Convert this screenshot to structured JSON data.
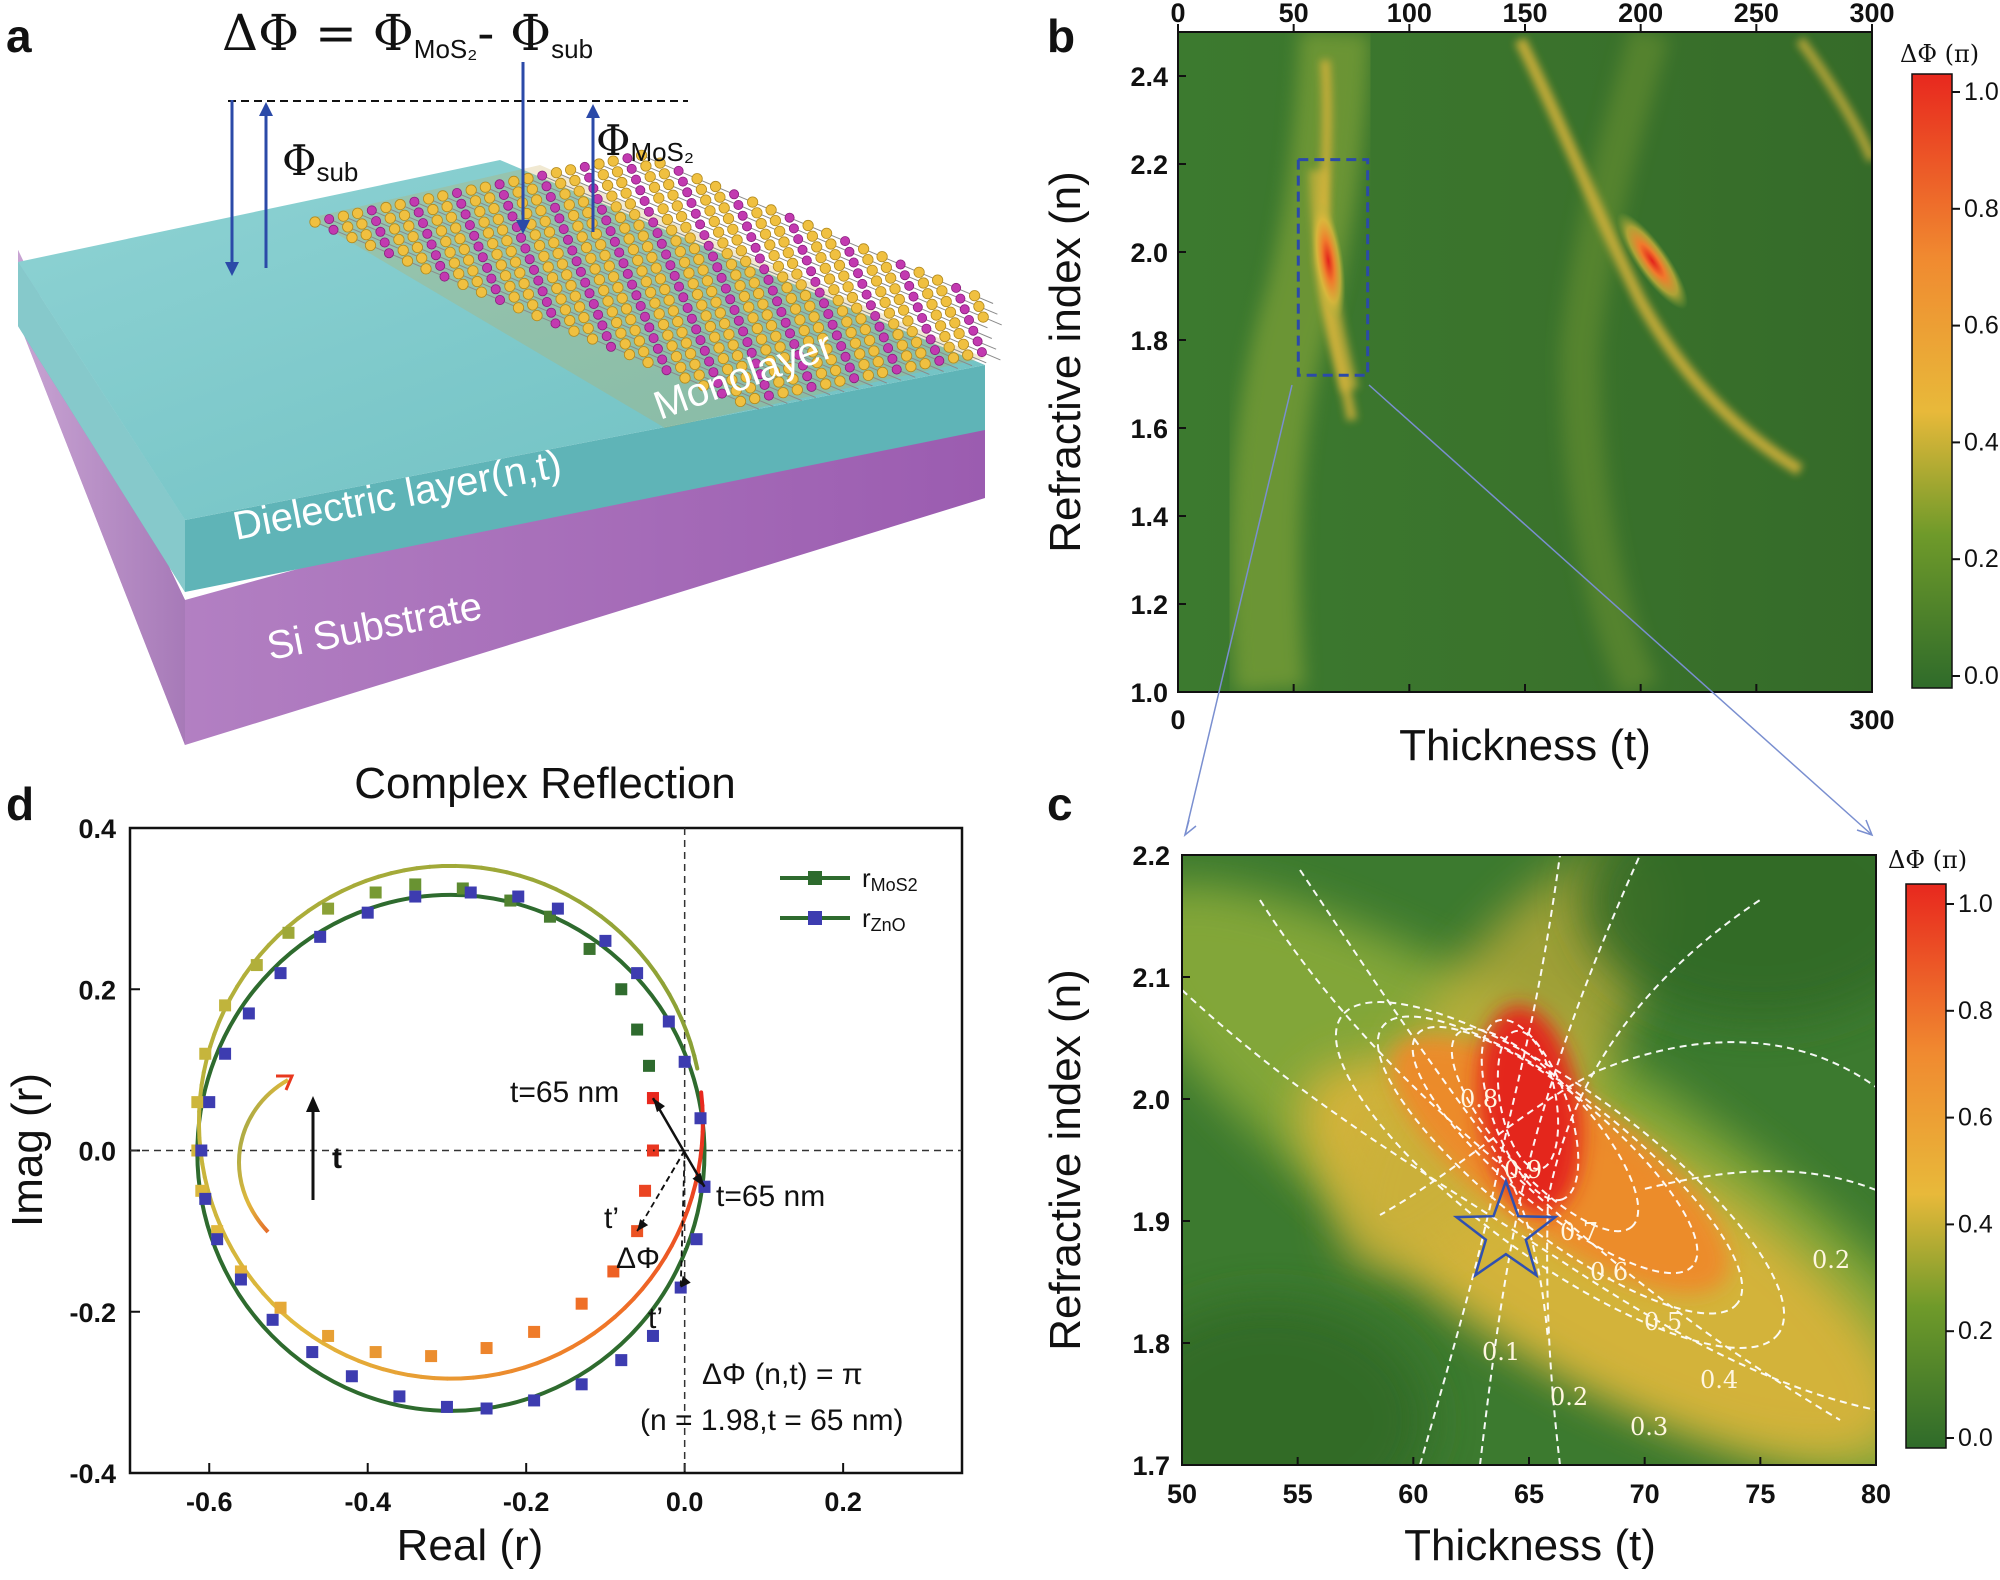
{
  "panels": {
    "a": {
      "letter": "a",
      "equation": "ΔΦ = Φ",
      "eq_sub1": "MoS₂",
      "eq_minus": "- Φ",
      "eq_sub2": "sub",
      "phi_sub_label": "Φ",
      "phi_sub_sub": "sub",
      "phi_mos2_label": "Φ",
      "phi_mos2_sub": "MoS₂",
      "monolayer_label": "Monolayer",
      "dielectric_label": "Dielectric layer(n,t)",
      "substrate_label": "Si Substrate",
      "colors": {
        "dielectric": "#79c7c9",
        "substrate": "#9a5fae",
        "atom_s": "#f0c040",
        "atom_mo": "#c23ab0"
      }
    },
    "b": {
      "letter": "b",
      "xlabel": "Thickness (t)",
      "ylabel": "Refractive index (n)",
      "top_ticks": [
        "0",
        "50",
        "100",
        "150",
        "200",
        "250",
        "300"
      ],
      "bottom_ticks": [
        "0",
        "300"
      ],
      "y_ticks": [
        "1.0",
        "1.2",
        "1.4",
        "1.6",
        "1.8",
        "2.0",
        "2.2",
        "2.4"
      ],
      "colorbar_title": "ΔΦ (π)",
      "colorbar_ticks": [
        "0.0",
        "0.2",
        "0.4",
        "0.6",
        "0.8",
        "1.0"
      ]
    },
    "c": {
      "letter": "c",
      "xlabel": "Thickness (t)",
      "ylabel": "Refractive index (n)",
      "x_ticks": [
        "50",
        "55",
        "60",
        "65",
        "70",
        "75",
        "80"
      ],
      "y_ticks": [
        "1.7",
        "1.8",
        "1.9",
        "2.0",
        "2.1",
        "2.2"
      ],
      "colorbar_title": "ΔΦ (π)",
      "colorbar_ticks": [
        "0.0",
        "0.2",
        "0.4",
        "0.6",
        "0.8",
        "1.0"
      ],
      "contour_labels": [
        "0.8",
        "0.9",
        "0.7",
        "0.6",
        "0.5",
        "0.4",
        "0.3",
        "0.2",
        "0.1",
        "0.2"
      ]
    },
    "d": {
      "letter": "d",
      "title": "Complex Reflection",
      "xlabel": "Real (r)",
      "ylabel": "Imag (r)",
      "x_ticks": [
        "-0.6",
        "-0.4",
        "-0.2",
        "0.0",
        "0.2"
      ],
      "y_ticks": [
        "-0.4",
        "-0.2",
        "0.0",
        "0.2",
        "0.4"
      ],
      "legend": [
        {
          "name": "r",
          "sub": "MoS2"
        },
        {
          "name": "r",
          "sub": "ZnO"
        }
      ],
      "annot_t65_a": "t=65 nm",
      "annot_t65_b": "t=65 nm",
      "annot_tprime_a": "t’",
      "annot_tprime_b": "t’",
      "annot_delta": "ΔΦ",
      "annot_t": "t",
      "annot_eq1": "ΔΦ (n,t) = π",
      "annot_eq2": "(n = 1.98,t = 65 nm)"
    }
  },
  "chart_data": [
    {
      "panel": "b",
      "type": "heatmap",
      "xlabel": "Thickness (t)",
      "ylabel": "Refractive index (n)",
      "xlim": [
        0,
        300
      ],
      "ylim": [
        1.0,
        2.5
      ],
      "colorbar": {
        "label": "ΔΦ (π)",
        "range": [
          0.0,
          1.0
        ]
      },
      "features": [
        {
          "type": "peak",
          "t": 65,
          "n": 1.98,
          "value": 1.0
        },
        {
          "type": "peak",
          "t": 205,
          "n": 1.98,
          "value": 1.0
        }
      ],
      "zoom_box": {
        "t": [
          52,
          82
        ],
        "n": [
          1.72,
          2.21
        ]
      }
    },
    {
      "panel": "c",
      "type": "heatmap",
      "xlabel": "Thickness (t)",
      "ylabel": "Refractive index (n)",
      "xlim": [
        50,
        80
      ],
      "ylim": [
        1.7,
        2.2
      ],
      "colorbar": {
        "label": "ΔΦ (π)",
        "range": [
          0.0,
          1.0
        ]
      },
      "peak": {
        "t": 65,
        "n": 1.98,
        "value": 1.0
      },
      "star_marker": {
        "t": 64,
        "n": 1.89
      },
      "contour_levels": [
        0.1,
        0.2,
        0.3,
        0.4,
        0.5,
        0.6,
        0.7,
        0.8,
        0.9
      ]
    },
    {
      "panel": "d",
      "type": "scatter",
      "title": "Complex Reflection",
      "xlabel": "Real (r)",
      "ylabel": "Imag (r)",
      "xlim": [
        -0.7,
        0.35
      ],
      "ylim": [
        -0.4,
        0.4
      ],
      "series": [
        {
          "name": "rMoS2",
          "color": "#2e6b2e",
          "center": [
            -0.295,
            0.035
          ],
          "radius": 0.318,
          "points": [
            [
              -0.04,
              0.065
            ],
            [
              -0.04,
              0.0
            ],
            [
              -0.05,
              -0.05
            ],
            [
              -0.06,
              -0.1
            ],
            [
              -0.09,
              -0.15
            ],
            [
              -0.13,
              -0.19
            ],
            [
              -0.19,
              -0.225
            ],
            [
              -0.25,
              -0.245
            ],
            [
              -0.32,
              -0.255
            ],
            [
              -0.39,
              -0.25
            ],
            [
              -0.45,
              -0.23
            ],
            [
              -0.51,
              -0.195
            ],
            [
              -0.56,
              -0.15
            ],
            [
              -0.59,
              -0.1
            ],
            [
              -0.61,
              -0.05
            ],
            [
              -0.615,
              0.0
            ],
            [
              -0.615,
              0.06
            ],
            [
              -0.605,
              0.12
            ],
            [
              -0.58,
              0.18
            ],
            [
              -0.54,
              0.23
            ],
            [
              -0.5,
              0.27
            ],
            [
              -0.45,
              0.3
            ],
            [
              -0.39,
              0.32
            ],
            [
              -0.34,
              0.33
            ],
            [
              -0.28,
              0.325
            ],
            [
              -0.22,
              0.31
            ],
            [
              -0.17,
              0.29
            ],
            [
              -0.12,
              0.25
            ],
            [
              -0.08,
              0.2
            ],
            [
              -0.06,
              0.15
            ],
            [
              -0.045,
              0.105
            ]
          ]
        },
        {
          "name": "rZnO",
          "color": "#2e6b2e",
          "center": [
            -0.295,
            -0.003
          ],
          "radius": 0.32,
          "points": [
            [
              0.025,
              -0.045
            ],
            [
              0.02,
              0.04
            ],
            [
              0.0,
              0.11
            ],
            [
              -0.02,
              0.16
            ],
            [
              -0.06,
              0.22
            ],
            [
              -0.1,
              0.26
            ],
            [
              -0.16,
              0.3
            ],
            [
              -0.21,
              0.315
            ],
            [
              -0.27,
              0.32
            ],
            [
              -0.34,
              0.315
            ],
            [
              -0.4,
              0.295
            ],
            [
              -0.46,
              0.265
            ],
            [
              -0.51,
              0.22
            ],
            [
              -0.55,
              0.17
            ],
            [
              -0.58,
              0.12
            ],
            [
              -0.6,
              0.06
            ],
            [
              -0.61,
              0.0
            ],
            [
              -0.605,
              -0.06
            ],
            [
              -0.59,
              -0.11
            ],
            [
              -0.56,
              -0.16
            ],
            [
              -0.52,
              -0.21
            ],
            [
              -0.47,
              -0.25
            ],
            [
              -0.42,
              -0.28
            ],
            [
              -0.36,
              -0.305
            ],
            [
              -0.3,
              -0.318
            ],
            [
              -0.25,
              -0.32
            ],
            [
              -0.19,
              -0.31
            ],
            [
              -0.13,
              -0.29
            ],
            [
              -0.08,
              -0.26
            ],
            [
              -0.04,
              -0.23
            ],
            [
              -0.005,
              -0.17
            ],
            [
              0.015,
              -0.11
            ]
          ]
        }
      ],
      "annotations": [
        {
          "text": "t=65 nm",
          "x": -0.04,
          "y": 0.065
        },
        {
          "text": "t=65 nm",
          "x": 0.025,
          "y": -0.045
        },
        {
          "text": "ΔΦ (n,t) = π  (n = 1.98, t = 65 nm)"
        }
      ]
    }
  ]
}
